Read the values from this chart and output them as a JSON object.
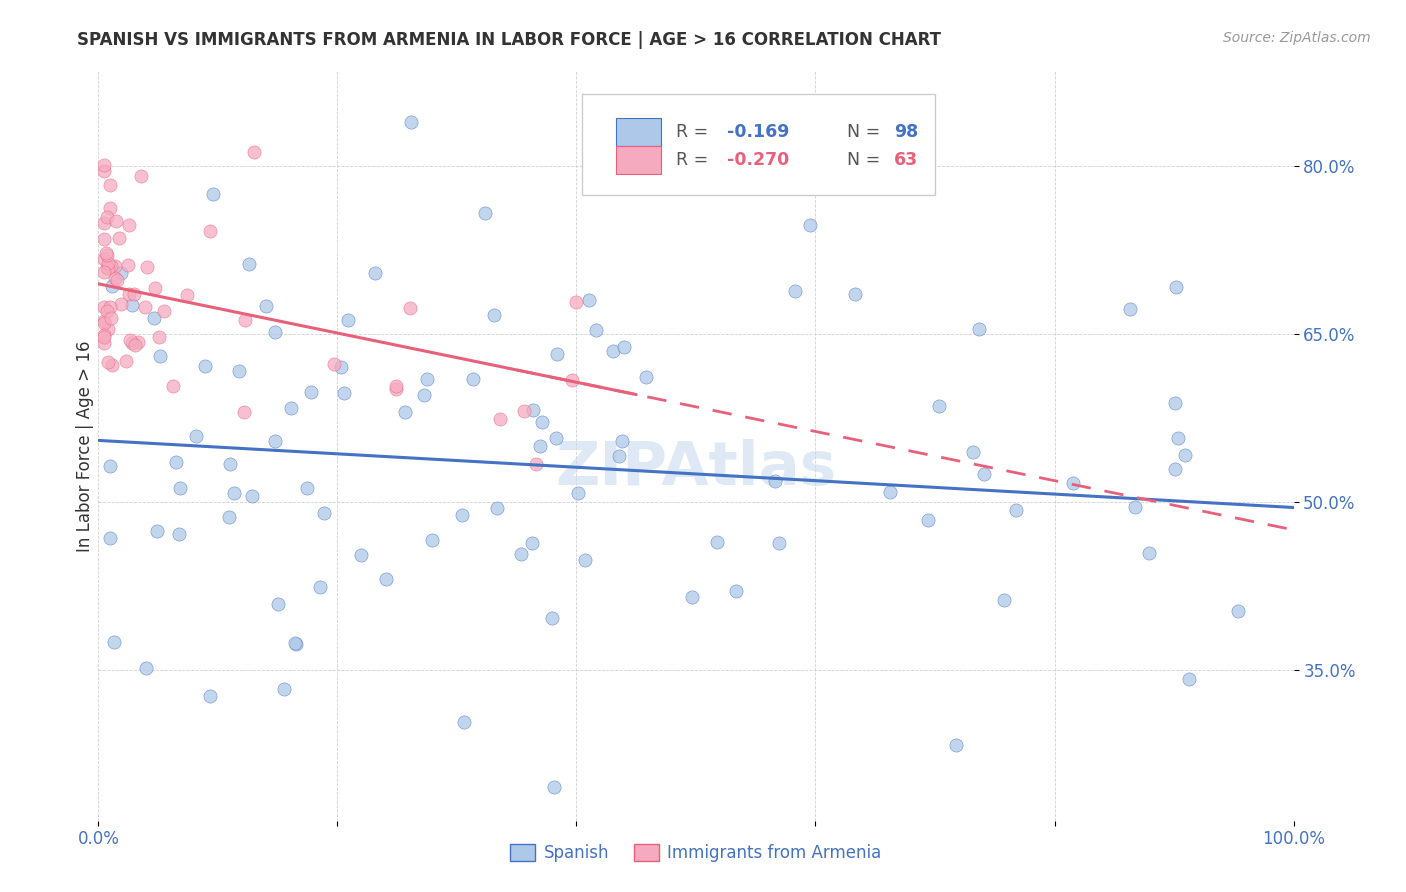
{
  "title": "SPANISH VS IMMIGRANTS FROM ARMENIA IN LABOR FORCE | AGE > 16 CORRELATION CHART",
  "source": "Source: ZipAtlas.com",
  "ylabel": "In Labor Force | Age > 16",
  "ytick_labels": [
    "35.0%",
    "50.0%",
    "65.0%",
    "80.0%"
  ],
  "ytick_values": [
    0.35,
    0.5,
    0.65,
    0.8
  ],
  "xlim": [
    0.0,
    1.0
  ],
  "ylim": [
    0.215,
    0.885
  ],
  "legend_blue_label": "Spanish",
  "legend_pink_label": "Immigrants from Armenia",
  "r_blue": "-0.169",
  "n_blue": "98",
  "r_pink": "-0.270",
  "n_pink": "63",
  "blue_color": "#adc8e8",
  "pink_color": "#f5aabf",
  "line_blue": "#4472C4",
  "line_pink": "#e8607a",
  "watermark": "ZIPAtlas",
  "blue_line_start_y": 0.555,
  "blue_line_end_y": 0.495,
  "pink_line_start_y": 0.695,
  "pink_line_end_y": 0.475,
  "pink_line_end_x": 1.0
}
